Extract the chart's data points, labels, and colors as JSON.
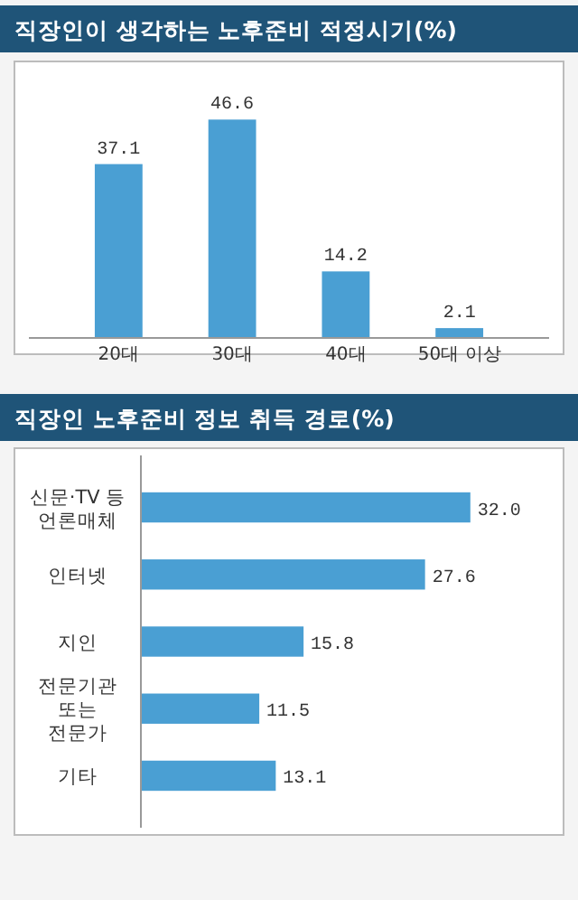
{
  "chart_data": [
    {
      "type": "bar",
      "title": "직장인이 생각하는 노후준비 적정시기(%)",
      "categories": [
        "20대",
        "30대",
        "40대",
        "50대 이상"
      ],
      "values": [
        37.1,
        46.6,
        14.2,
        2.1
      ],
      "color": "#4a9fd3",
      "data_labels": true
    },
    {
      "type": "bar",
      "orientation": "horizontal",
      "title": "직장인 노후준비 정보 취득 경로(%)",
      "categories": [
        "신문·TV 등\n언론매체",
        "인터넷",
        "지인",
        "전문기관\n또는\n전문가",
        "기타"
      ],
      "values": [
        32.0,
        27.6,
        15.8,
        11.5,
        13.1
      ],
      "value_labels": [
        "32.0",
        "27.6",
        "15.8",
        "11.5",
        "13.1"
      ],
      "color": "#4a9fd3"
    }
  ]
}
